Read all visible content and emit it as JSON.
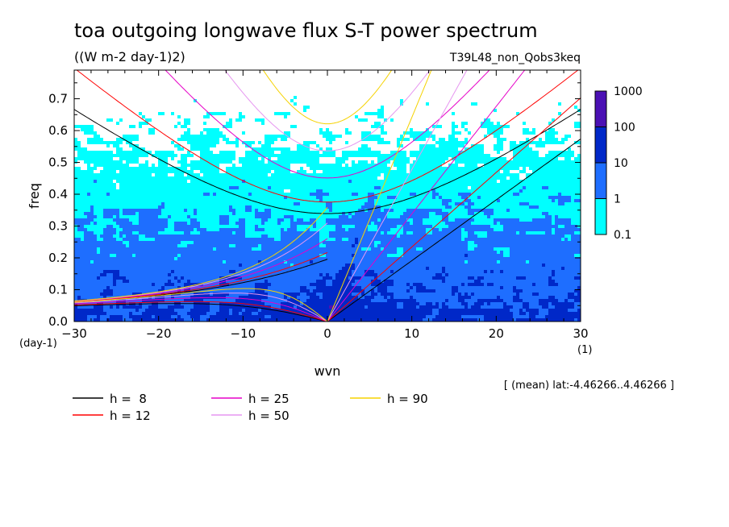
{
  "chart_data": {
    "type": "heatmap",
    "title": "toa outgoing longwave flux S-T power spectrum",
    "subtitle": "((W m-2 day-1)2)",
    "run_label": "T39L48_non_Qobs3keq",
    "xlabel": "wvn",
    "ylabel": "freq",
    "x_unit": "(1)",
    "y_unit": "(day-1)",
    "xlim": [
      -30,
      30
    ],
    "ylim": [
      0,
      0.79
    ],
    "xticks": [
      -30,
      -20,
      -10,
      0,
      10,
      20,
      30
    ],
    "xtick_labels": [
      "−30",
      "−20",
      "−10",
      "0",
      "10",
      "20",
      "30"
    ],
    "yticks": [
      0,
      0.1,
      0.2,
      0.3,
      0.4,
      0.5,
      0.6,
      0.7
    ],
    "ytick_labels": [
      "0.0",
      "0.1",
      "0.2",
      "0.3",
      "0.4",
      "0.5",
      "0.6",
      "0.7"
    ],
    "grid": false,
    "colorbar": {
      "levels": [
        0.1,
        1,
        10,
        100,
        1000
      ],
      "labels": [
        "0.1",
        "1",
        "10",
        "100",
        "1000"
      ],
      "colors": [
        "#00ffff",
        "#1e6eff",
        "#0028c8",
        "#4b10b4"
      ]
    },
    "dispersion_curves": [
      {
        "h": 8,
        "label": "h =  8",
        "color": "#000000"
      },
      {
        "h": 12,
        "label": "h = 12",
        "color": "#ff0000"
      },
      {
        "h": 25,
        "label": "h = 25",
        "color": "#e600c8"
      },
      {
        "h": 50,
        "label": "h = 50",
        "color": "#e696f0"
      },
      {
        "h": 90,
        "label": "h = 90",
        "color": "#f5d200"
      }
    ],
    "region_note": "[ (mean) lat:-4.46266..4.46266 ]"
  }
}
